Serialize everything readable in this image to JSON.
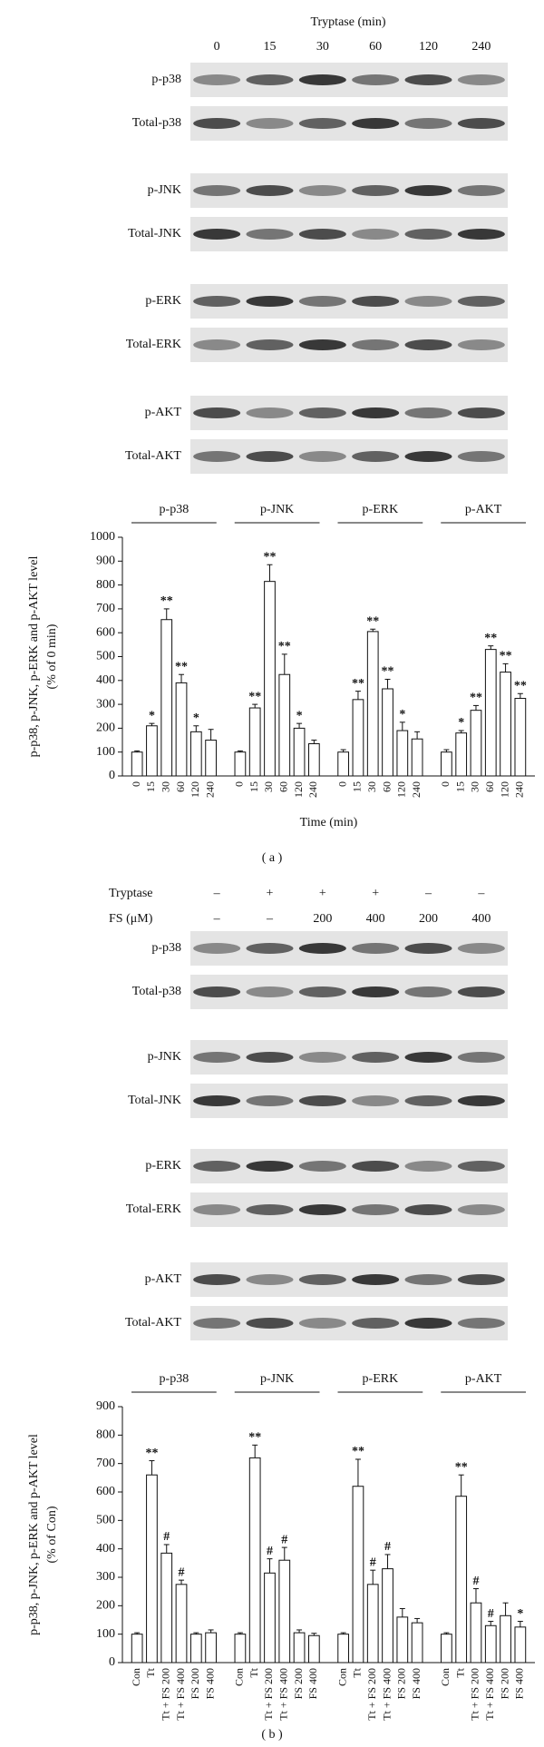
{
  "blots": [
    {
      "title": "Tryptase (min)",
      "lanes": [
        "0",
        "15",
        "30",
        "60",
        "120",
        "240"
      ],
      "rows": [
        "p-p38",
        "Total-p38",
        "p-JNK",
        "Total-JNK",
        "p-ERK",
        "Total-ERK",
        "p-AKT",
        "Total-AKT"
      ]
    },
    {
      "conditions": [
        {
          "label": "Tryptase",
          "values": [
            "–",
            "+",
            "+",
            "+",
            "–",
            "–"
          ]
        },
        {
          "label": "FS (μM)",
          "values": [
            "–",
            "–",
            "200",
            "400",
            "200",
            "400"
          ]
        }
      ],
      "rows": [
        "p-p38",
        "Total-p38",
        "p-JNK",
        "Total-JNK",
        "p-ERK",
        "Total-ERK",
        "p-AKT",
        "Total-AKT"
      ]
    }
  ],
  "chart_data": [
    {
      "type": "bar",
      "ylabel": [
        "p-p38, p-JNK, p-ERK and p-AKT level",
        "(% of 0 min)"
      ],
      "xlabel": "Time (min)",
      "categories": [
        "0",
        "15",
        "30",
        "60",
        "120",
        "240"
      ],
      "series": [
        {
          "name": "p-p38",
          "color": "#ffffff",
          "values": [
            100,
            210,
            655,
            390,
            185,
            150
          ],
          "errors": [
            5,
            10,
            45,
            35,
            25,
            45
          ],
          "significance": [
            null,
            "*",
            "**",
            "**",
            "*",
            null
          ]
        },
        {
          "name": "p-JNK",
          "color": "#ffffff",
          "values": [
            100,
            285,
            815,
            425,
            200,
            135
          ],
          "errors": [
            5,
            15,
            70,
            85,
            20,
            15
          ],
          "significance": [
            null,
            "**",
            "**",
            "**",
            "*",
            null
          ]
        },
        {
          "name": "p-ERK",
          "color": "#ffffff",
          "values": [
            100,
            320,
            605,
            365,
            190,
            155
          ],
          "errors": [
            10,
            35,
            10,
            40,
            35,
            30
          ],
          "significance": [
            null,
            "**",
            "**",
            "**",
            "*",
            null
          ]
        },
        {
          "name": "p-AKT",
          "color": "#ffffff",
          "values": [
            100,
            180,
            275,
            530,
            435,
            325
          ],
          "errors": [
            10,
            10,
            20,
            15,
            35,
            20
          ],
          "significance": [
            null,
            "*",
            "**",
            "**",
            "**",
            "**"
          ]
        }
      ],
      "ylim": [
        0,
        1000
      ],
      "yticks": [
        0,
        100,
        200,
        300,
        400,
        500,
        600,
        700,
        800,
        900,
        1000
      ]
    },
    {
      "type": "bar",
      "ylabel": [
        "p-p38, p-JNK, p-ERK and p-AKT level",
        "(% of Con)"
      ],
      "categories": [
        "Con",
        "Tt",
        "Tt + FS 200",
        "Tt + FS 400",
        "FS 200",
        "FS 400"
      ],
      "series": [
        {
          "name": "p-p38",
          "color": "#ffffff",
          "values": [
            100,
            660,
            385,
            275,
            100,
            105
          ],
          "errors": [
            5,
            50,
            30,
            15,
            5,
            10
          ],
          "significance": [
            null,
            "**",
            "#",
            "#",
            null,
            null
          ]
        },
        {
          "name": "p-JNK",
          "color": "#ffffff",
          "values": [
            100,
            720,
            315,
            360,
            105,
            95
          ],
          "errors": [
            5,
            45,
            50,
            45,
            10,
            8
          ],
          "significance": [
            null,
            "**",
            "#",
            "#",
            null,
            null
          ]
        },
        {
          "name": "p-ERK",
          "color": "#ffffff",
          "values": [
            100,
            620,
            275,
            330,
            160,
            140
          ],
          "errors": [
            5,
            95,
            50,
            50,
            30,
            15
          ],
          "significance": [
            null,
            "**",
            "#",
            "#",
            null,
            null
          ]
        },
        {
          "name": "p-AKT",
          "color": "#ffffff",
          "values": [
            100,
            585,
            210,
            130,
            165,
            125
          ],
          "errors": [
            5,
            75,
            50,
            15,
            45,
            20
          ],
          "significance": [
            null,
            "**",
            "#",
            "#",
            null,
            "*"
          ]
        }
      ],
      "ylim": [
        0,
        900
      ],
      "yticks": [
        0,
        100,
        200,
        300,
        400,
        500,
        600,
        700,
        800,
        900
      ]
    }
  ],
  "captions": [
    "( a )",
    "( b )"
  ]
}
